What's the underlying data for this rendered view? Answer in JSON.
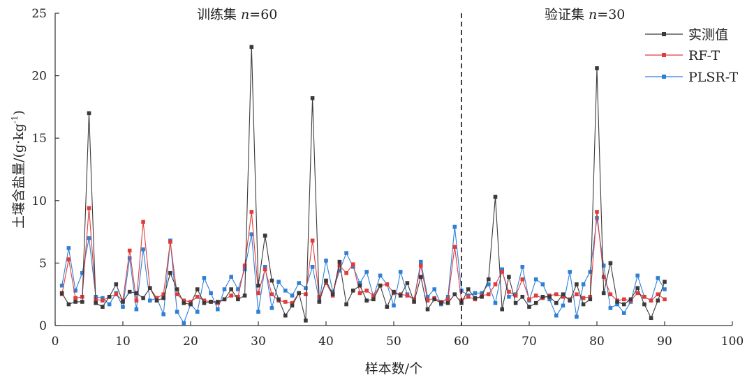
{
  "chart_data": {
    "type": "line",
    "xlabel": "样本数/个",
    "ylabel_prefix": "土壤含盐量/(g·kg",
    "ylabel_sup": "-1",
    "ylabel_suffix": ")",
    "xlim": [
      0,
      100
    ],
    "ylim": [
      0,
      25
    ],
    "xticks": [
      0,
      10,
      20,
      30,
      40,
      50,
      60,
      70,
      80,
      90,
      100
    ],
    "yticks": [
      0,
      5,
      10,
      15,
      20,
      25
    ],
    "divider_x": 60,
    "regions": [
      {
        "label_prefix": "训练集 ",
        "label_var": "n",
        "label_value": "=60"
      },
      {
        "label_prefix": "验证集 ",
        "label_var": "n",
        "label_value": "=30"
      }
    ],
    "legend_position": "top-right",
    "grid": false,
    "series": [
      {
        "name": "实测值",
        "color": "#3a3a3a",
        "values": [
          2.6,
          1.7,
          1.9,
          1.9,
          17.0,
          1.8,
          1.5,
          2.3,
          3.3,
          1.9,
          2.7,
          2.6,
          2.2,
          3.0,
          2.0,
          2.2,
          4.2,
          2.9,
          1.8,
          1.7,
          2.9,
          1.8,
          1.9,
          1.9,
          2.1,
          2.9,
          2.1,
          2.4,
          22.3,
          3.2,
          7.2,
          3.6,
          2.1,
          0.8,
          1.6,
          2.6,
          0.4,
          18.2,
          1.9,
          3.6,
          2.5,
          5.1,
          1.7,
          2.8,
          3.2,
          2.0,
          2.1,
          3.2,
          1.5,
          2.7,
          2.4,
          3.4,
          1.9,
          3.9,
          1.3,
          2.1,
          1.8,
          1.8,
          2.5,
          1.8,
          2.9,
          2.2,
          2.3,
          3.7,
          10.3,
          1.3,
          3.9,
          1.8,
          2.3,
          1.5,
          1.8,
          2.3,
          2.3,
          1.8,
          2.5,
          2.0,
          3.3,
          1.7,
          2.1,
          20.6,
          2.6,
          5.0,
          1.9,
          1.7,
          2.1,
          3.0,
          1.7,
          0.6,
          2.0,
          3.5
        ]
      },
      {
        "name": "RF-T",
        "color": "#e03c3c",
        "values": [
          2.5,
          5.3,
          2.2,
          2.3,
          9.4,
          2.1,
          2.0,
          2.3,
          2.5,
          2.0,
          6.0,
          2.0,
          8.3,
          3.0,
          2.2,
          2.5,
          6.7,
          2.5,
          2.0,
          1.9,
          2.3,
          2.0,
          1.9,
          1.8,
          2.1,
          2.4,
          2.3,
          4.8,
          9.1,
          2.6,
          4.5,
          2.5,
          2.0,
          1.9,
          1.8,
          2.6,
          2.5,
          6.8,
          2.3,
          3.4,
          2.4,
          4.8,
          4.2,
          4.9,
          2.6,
          2.8,
          2.4,
          3.2,
          3.3,
          2.6,
          2.5,
          2.4,
          2.1,
          4.8,
          2.0,
          2.2,
          1.9,
          2.1,
          6.3,
          2.0,
          2.3,
          2.1,
          2.4,
          2.5,
          3.3,
          4.3,
          2.7,
          2.4,
          3.7,
          2.1,
          2.4,
          2.2,
          2.4,
          2.5,
          2.3,
          2.1,
          2.5,
          2.2,
          2.3,
          9.1,
          3.9,
          2.5,
          2.0,
          2.1,
          2.0,
          2.6,
          2.3,
          2.0,
          2.5,
          2.1
        ]
      },
      {
        "name": "PLSR-T",
        "color": "#2f7fd6",
        "values": [
          3.2,
          6.2,
          2.8,
          4.2,
          7.0,
          2.3,
          2.2,
          1.7,
          2.6,
          1.5,
          5.4,
          1.3,
          6.1,
          2.0,
          2.2,
          0.9,
          6.8,
          1.1,
          0.2,
          1.7,
          1.1,
          3.8,
          2.6,
          1.3,
          2.9,
          3.9,
          2.9,
          4.5,
          7.3,
          1.1,
          4.7,
          1.4,
          3.5,
          2.8,
          2.4,
          3.4,
          3.0,
          4.7,
          2.0,
          5.2,
          2.7,
          4.4,
          5.8,
          4.7,
          3.4,
          4.3,
          2.3,
          4.0,
          3.3,
          1.6,
          4.3,
          2.5,
          2.1,
          5.1,
          2.3,
          2.9,
          1.7,
          2.3,
          7.9,
          2.8,
          2.4,
          2.6,
          2.6,
          3.3,
          1.8,
          4.5,
          2.3,
          2.5,
          4.7,
          2.0,
          3.7,
          3.3,
          2.1,
          0.8,
          1.6,
          4.3,
          0.7,
          3.3,
          4.3,
          8.6,
          4.8,
          1.4,
          1.7,
          1.0,
          1.9,
          4.0,
          2.3,
          2.0,
          3.8,
          2.9
        ]
      }
    ]
  }
}
